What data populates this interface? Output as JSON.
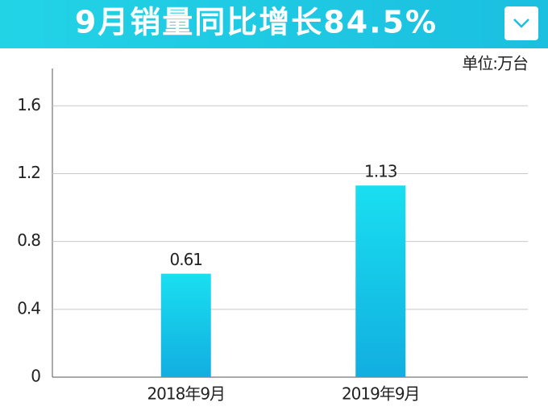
{
  "chart_data": {
    "type": "bar",
    "title": "9月销量同比增长84.5%",
    "unit_label": "单位:万台",
    "categories": [
      "2018年9月",
      "2019年9月"
    ],
    "values": [
      0.61,
      1.13
    ],
    "color": "#19dff0",
    "ylim": [
      0,
      1.82
    ],
    "yticks": [
      0,
      0.4,
      0.8,
      1.2,
      1.6
    ],
    "grid": true
  }
}
